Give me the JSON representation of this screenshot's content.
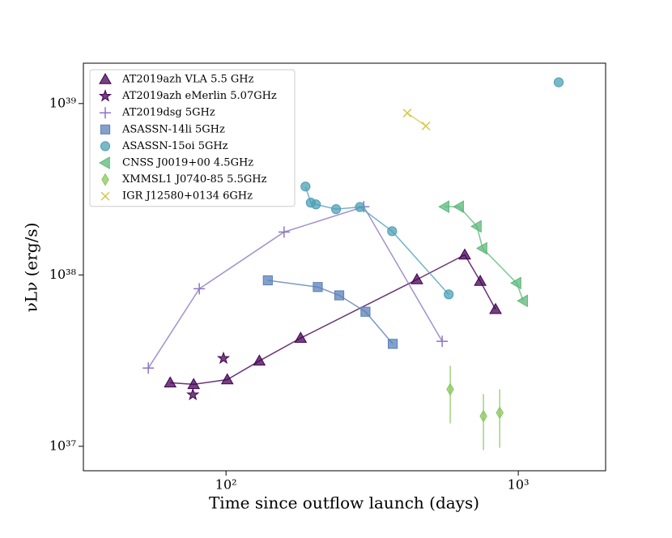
{
  "chart_data": {
    "type": "scatter",
    "xlabel": "Time since outflow launch (days)",
    "ylabel": "νLν (erg/s)",
    "xscale": "log",
    "yscale": "log",
    "xlim": [
      32.5,
      1990
    ],
    "ylim": [
      7.2e+36,
      1.72e+39
    ],
    "xticks": [
      {
        "value": 100,
        "label": "10²"
      },
      {
        "value": 1000,
        "label": "10³"
      }
    ],
    "yticks": [
      {
        "value": 1e+37,
        "label": "10³⁷"
      },
      {
        "value": 1e+38,
        "label": "10³⁸"
      },
      {
        "value": 1e+39,
        "label": "10³⁹"
      }
    ],
    "legend": "upper left",
    "series": [
      {
        "name": "AT2019azh VLA 5.5 GHz",
        "color": "#440154",
        "marker": "^",
        "line": true,
        "x": [
          64.4,
          77.5,
          101,
          130,
          180,
          450,
          656,
          741,
          836
        ],
        "values": [
          2.35e+37,
          2.3e+37,
          2.45e+37,
          3.15e+37,
          4.28e+37,
          9.4e+37,
          1.31e+38,
          9.2e+37,
          6.3e+37
        ]
      },
      {
        "name": "AT2019azh eMerlin 5.07GHz",
        "color": "#440154",
        "marker": "*",
        "line": false,
        "x": [
          77,
          98
        ],
        "values": [
          2e+37,
          3.26e+37
        ]
      },
      {
        "name": "AT2019dsg 5GHz",
        "color": "#8c76c0",
        "marker": "+",
        "line": true,
        "x": [
          54.2,
          81,
          158,
          296,
          549
        ],
        "values": [
          2.86e+37,
          8.3e+37,
          1.78e+38,
          2.5e+38,
          4.1e+37
        ]
      },
      {
        "name": "ASASSN-14li 5GHz",
        "color": "#5a80b8",
        "marker": "s",
        "line": true,
        "x": [
          139,
          206,
          244,
          300,
          372
        ],
        "values": [
          9.3e+37,
          8.5e+37,
          7.6e+37,
          6.1e+37,
          3.96e+37
        ]
      },
      {
        "name": "ASASSN-15oi 5GHz",
        "color": "#4ea0b5",
        "marker": "o",
        "line": true,
        "x": [
          187,
          195,
          203,
          238,
          287,
          370,
          578,
          null,
          1375
        ],
        "values": [
          3.28e+38,
          2.64e+38,
          2.58e+38,
          2.42e+38,
          2.49e+38,
          1.8e+38,
          7.7e+37,
          null,
          1.33e+39
        ]
      },
      {
        "name": "CNSS J0019+00 4.5GHz",
        "color": "#5cb87a",
        "marker": "<",
        "line": true,
        "x": [
          560,
          628,
          722,
          755,
          987,
          1040
        ],
        "values": [
          2.5e+38,
          2.5e+38,
          1.92e+38,
          1.43e+38,
          8.97e+37,
          7.06e+37
        ]
      },
      {
        "name": "XMMSL1 J0740-85 5.5GHz",
        "color": "#8cc760",
        "marker": "d",
        "line": false,
        "x": [
          585,
          760,
          864
        ],
        "values": [
          2.15e+37,
          1.5e+37,
          1.57e+37
        ],
        "err_low": [
          1.36e+37,
          9.5e+36,
          9.8e+36
        ],
        "err_high": [
          2.95e+37,
          2.02e+37,
          2.15e+37
        ]
      },
      {
        "name": "IGR J12580+0134 6GHz",
        "color": "#d4c94a",
        "marker": "x",
        "line": true,
        "x": [
          417,
          483
        ],
        "values": [
          8.8e+38,
          7.4e+38
        ]
      }
    ]
  }
}
